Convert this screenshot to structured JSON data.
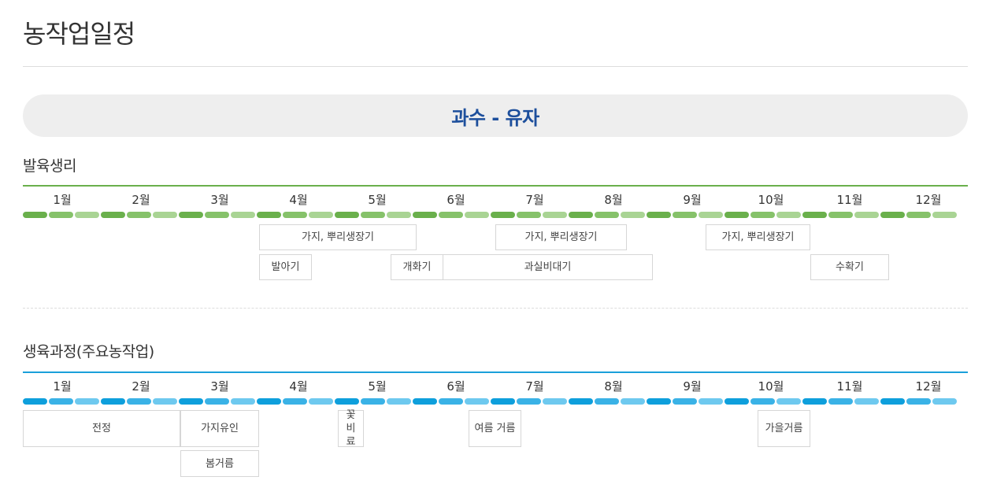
{
  "page": {
    "title": "농작업일정"
  },
  "crop": {
    "title": "과수 - 유자"
  },
  "sections": {
    "growth": {
      "title": "발육생리"
    },
    "process": {
      "title": "생육과정(주요농작업)"
    }
  },
  "months": [
    "1월",
    "2월",
    "3월",
    "4월",
    "5월",
    "6월",
    "7월",
    "8월",
    "9월",
    "10월",
    "11월",
    "12월"
  ],
  "growth_items": [
    "가지, 뿌리생장기",
    "가지, 뿌리생장기",
    "가지, 뿌리생장기",
    "발아기",
    "개화기",
    "과실비대기",
    "수확기"
  ],
  "process_items": [
    "전정",
    "가지유인",
    "꽃비료",
    "여름 거름",
    "가을거름",
    "봄거름"
  ],
  "colors": {
    "growth_accent": "#6ab04c",
    "process_accent": "#1aa0da",
    "banner_text": "#1d4f9c"
  }
}
